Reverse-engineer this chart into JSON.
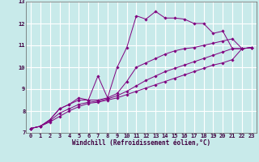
{
  "xlabel": "Windchill (Refroidissement éolien,°C)",
  "ylabel": "",
  "xlim": [
    -0.5,
    23.5
  ],
  "ylim": [
    7,
    13
  ],
  "xticks": [
    0,
    1,
    2,
    3,
    4,
    5,
    6,
    7,
    8,
    9,
    10,
    11,
    12,
    13,
    14,
    15,
    16,
    17,
    18,
    19,
    20,
    21,
    22,
    23
  ],
  "yticks": [
    7,
    8,
    9,
    10,
    11,
    12,
    13
  ],
  "background_color": "#c8eaea",
  "grid_color": "#ffffff",
  "line_color": "#800080",
  "lines": [
    {
      "x": [
        0,
        1,
        2,
        3,
        4,
        5,
        6,
        7,
        8,
        9,
        10,
        11,
        12,
        13,
        14,
        15,
        16,
        17,
        18,
        19,
        20,
        21,
        22,
        23
      ],
      "y": [
        7.2,
        7.3,
        7.6,
        8.1,
        8.3,
        8.6,
        8.5,
        9.6,
        8.6,
        10.0,
        10.9,
        12.35,
        12.2,
        12.55,
        12.25,
        12.25,
        12.2,
        12.0,
        12.0,
        11.55,
        11.65,
        10.85,
        10.85,
        10.9
      ]
    },
    {
      "x": [
        0,
        1,
        2,
        3,
        4,
        5,
        6,
        7,
        8,
        9,
        10,
        11,
        12,
        13,
        14,
        15,
        16,
        17,
        18,
        19,
        20,
        21,
        22,
        23
      ],
      "y": [
        7.2,
        7.3,
        7.6,
        8.1,
        8.3,
        8.5,
        8.5,
        8.5,
        8.6,
        8.8,
        9.35,
        10.0,
        10.2,
        10.4,
        10.6,
        10.75,
        10.85,
        10.9,
        11.0,
        11.1,
        11.2,
        11.3,
        10.85,
        10.9
      ]
    },
    {
      "x": [
        0,
        1,
        2,
        3,
        4,
        5,
        6,
        7,
        8,
        9,
        10,
        11,
        12,
        13,
        14,
        15,
        16,
        17,
        18,
        19,
        20,
        21,
        22,
        23
      ],
      "y": [
        7.2,
        7.3,
        7.55,
        7.9,
        8.1,
        8.3,
        8.4,
        8.45,
        8.55,
        8.7,
        8.9,
        9.15,
        9.4,
        9.6,
        9.8,
        9.95,
        10.1,
        10.25,
        10.4,
        10.55,
        10.7,
        10.85,
        10.85,
        10.9
      ]
    },
    {
      "x": [
        0,
        1,
        2,
        3,
        4,
        5,
        6,
        7,
        8,
        9,
        10,
        11,
        12,
        13,
        14,
        15,
        16,
        17,
        18,
        19,
        20,
        21,
        22,
        23
      ],
      "y": [
        7.2,
        7.3,
        7.5,
        7.75,
        8.0,
        8.2,
        8.35,
        8.4,
        8.5,
        8.6,
        8.75,
        8.9,
        9.05,
        9.2,
        9.35,
        9.5,
        9.65,
        9.8,
        9.95,
        10.1,
        10.2,
        10.35,
        10.85,
        10.9
      ]
    }
  ],
  "tick_fontsize": 5,
  "xlabel_fontsize": 5.5,
  "marker_size": 1.8,
  "line_width": 0.7
}
